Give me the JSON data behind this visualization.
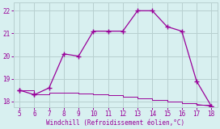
{
  "xlabel": "Windchill (Refroidissement éolien,°C)",
  "x_upper": [
    5,
    6,
    7,
    8,
    9,
    10,
    11,
    12,
    13,
    14,
    15,
    16,
    17,
    18
  ],
  "y_upper": [
    18.5,
    18.3,
    18.6,
    20.1,
    20.0,
    21.1,
    21.1,
    21.1,
    22.0,
    22.0,
    21.3,
    21.1,
    18.9,
    17.8
  ],
  "x_lower": [
    5,
    6,
    7,
    8,
    9,
    10,
    11,
    12,
    13,
    14,
    15,
    16,
    17,
    18
  ],
  "y_lower": [
    18.5,
    18.3,
    18.4,
    18.38,
    18.35,
    18.32,
    18.28,
    18.22,
    18.15,
    18.08,
    18.0,
    17.93,
    17.87,
    17.8
  ],
  "line_color": "#990099",
  "bg_color": "#d8f0f0",
  "grid_color": "#b8d0d0",
  "tick_label_color": "#990099",
  "axis_label_color": "#990099",
  "xlim": [
    4.6,
    18.4
  ],
  "ylim": [
    17.75,
    22.35
  ],
  "yticks": [
    18,
    19,
    20,
    21,
    22
  ],
  "xticks": [
    5,
    6,
    7,
    8,
    9,
    10,
    11,
    12,
    13,
    14,
    15,
    16,
    17,
    18
  ]
}
